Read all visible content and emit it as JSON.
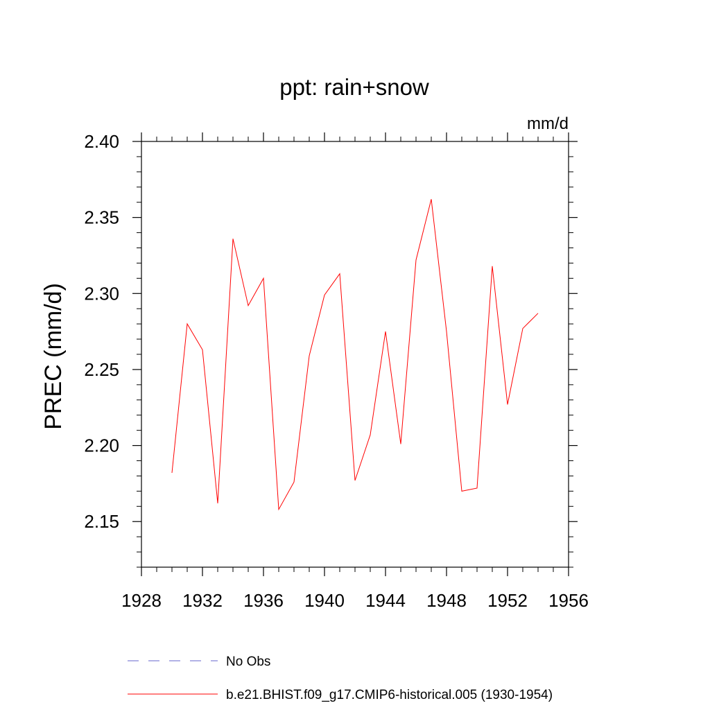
{
  "chart_data": {
    "type": "line",
    "title": "ppt: rain+snow",
    "units_label": "mm/d",
    "ylabel": "PREC  (mm/d)",
    "xlabel": "",
    "xlim": [
      1928,
      1956
    ],
    "ylim": [
      2.12,
      2.4
    ],
    "x_ticks": [
      1928,
      1932,
      1936,
      1940,
      1944,
      1948,
      1952,
      1956
    ],
    "x_tick_labels": [
      "1928",
      "1932",
      "1936",
      "1940",
      "1944",
      "1948",
      "1952",
      "1956"
    ],
    "y_ticks": [
      2.15,
      2.2,
      2.25,
      2.3,
      2.35,
      2.4
    ],
    "y_tick_labels": [
      "2.15",
      "2.20",
      "2.25",
      "2.30",
      "2.35",
      "2.40"
    ],
    "grid": false,
    "legend_position": "bottom",
    "series": [
      {
        "name": "b.e21.BHIST.f09_g17.CMIP6-historical.005 (1930-1954)",
        "color": "#ff0000",
        "style": "solid",
        "x": [
          1930,
          1931,
          1932,
          1933,
          1934,
          1935,
          1936,
          1937,
          1938,
          1939,
          1940,
          1941,
          1942,
          1943,
          1944,
          1945,
          1946,
          1947,
          1948,
          1949,
          1950,
          1951,
          1952,
          1953,
          1954
        ],
        "y": [
          2.182,
          2.28,
          2.263,
          2.162,
          2.336,
          2.292,
          2.31,
          2.158,
          2.176,
          2.259,
          2.299,
          2.313,
          2.177,
          2.207,
          2.275,
          2.201,
          2.322,
          2.362,
          2.275,
          2.17,
          2.172,
          2.318,
          2.227,
          2.277,
          2.287
        ]
      }
    ],
    "legend": [
      {
        "label": "No Obs",
        "color": "#6666cc",
        "style": "dashed"
      },
      {
        "label": "b.e21.BHIST.f09_g17.CMIP6-historical.005 (1930-1954)",
        "color": "#ff0000",
        "style": "solid"
      }
    ]
  }
}
